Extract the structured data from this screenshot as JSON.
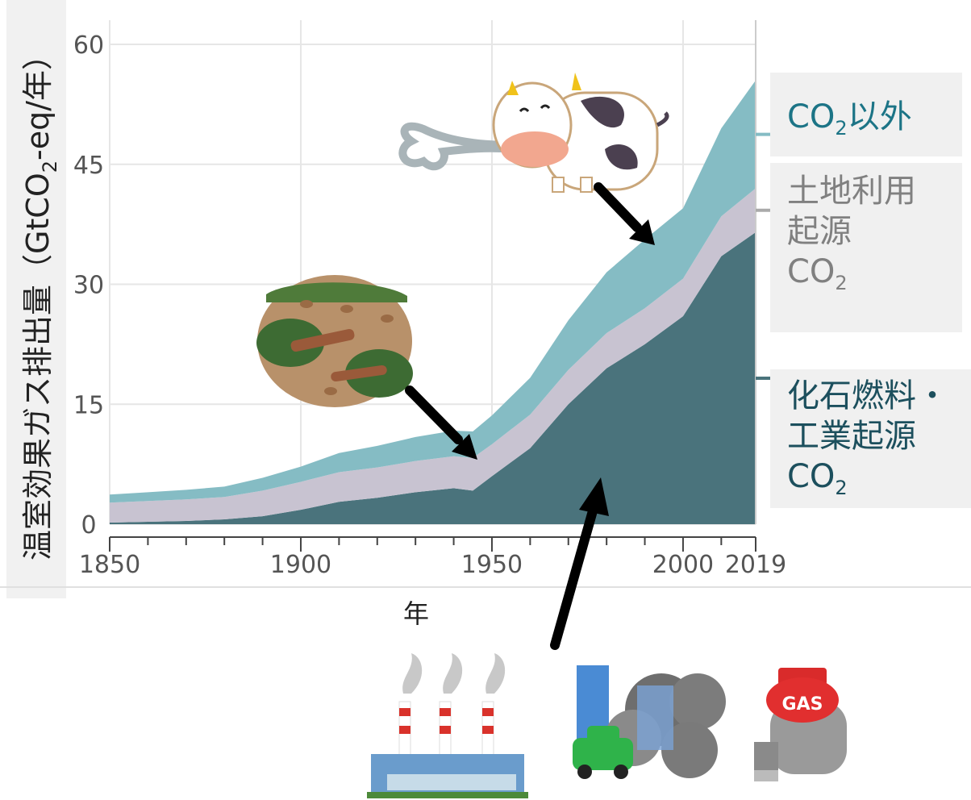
{
  "chart_data": {
    "type": "area",
    "title": "",
    "ylabel_parts": [
      "温室効果ガス排出量（GtCO",
      "2",
      "-eq/年）"
    ],
    "xlabel": "年",
    "ylim": [
      0,
      60
    ],
    "xlim": [
      1850,
      2019
    ],
    "yticks": [
      0,
      15,
      30,
      45,
      60
    ],
    "xticks": [
      1850,
      1900,
      1950,
      2000,
      2019
    ],
    "grid": true,
    "stacked": true,
    "x": [
      1850,
      1860,
      1870,
      1880,
      1890,
      1900,
      1910,
      1920,
      1930,
      1940,
      1945,
      1950,
      1960,
      1970,
      1980,
      1990,
      2000,
      2010,
      2019
    ],
    "series": [
      {
        "name": "化石燃料・工業起源CO2",
        "color": "#4a737c",
        "values": [
          0.2,
          0.3,
          0.4,
          0.6,
          1.0,
          1.8,
          2.8,
          3.3,
          4.0,
          4.5,
          4.2,
          6.0,
          9.5,
          15.0,
          19.5,
          22.5,
          26.0,
          33.5,
          36.5
        ]
      },
      {
        "name": "土地利用起源CO2",
        "color": "#c8c3d1",
        "values": [
          2.5,
          2.6,
          2.7,
          2.8,
          3.2,
          3.5,
          3.7,
          3.8,
          3.9,
          4.0,
          4.1,
          4.0,
          4.2,
          4.3,
          4.4,
          4.5,
          4.7,
          5.0,
          5.5
        ]
      },
      {
        "name": "CO2以外",
        "color": "#85bcc4",
        "values": [
          1.0,
          1.1,
          1.2,
          1.3,
          1.6,
          1.9,
          2.4,
          2.7,
          3.0,
          3.2,
          3.3,
          3.6,
          4.6,
          6.2,
          7.6,
          8.6,
          8.8,
          11.0,
          13.5
        ]
      }
    ]
  },
  "legend": [
    {
      "text": "CO",
      "sub": "2",
      "after": "以外",
      "color": "#1c7486"
    },
    {
      "lines": [
        "土地利用",
        "起源"
      ],
      "last": "CO",
      "sub": "2",
      "color": "#808080"
    },
    {
      "lines": [
        "化石燃料・",
        "工業起源"
      ],
      "last": "CO",
      "sub": "2",
      "color": "#1c4f5d"
    }
  ],
  "illustrations": {
    "cow": "cow-icon",
    "deforestation": "deforestation-icon",
    "factory": "factory-icon",
    "city": "city-pollution-icon",
    "gas": "gas-tank-icon"
  },
  "illustration_text": {
    "gas_tank": "GAS"
  },
  "colors": {
    "arrow": "#000000",
    "grid": "#e6e6e6",
    "axis": "#555555"
  }
}
